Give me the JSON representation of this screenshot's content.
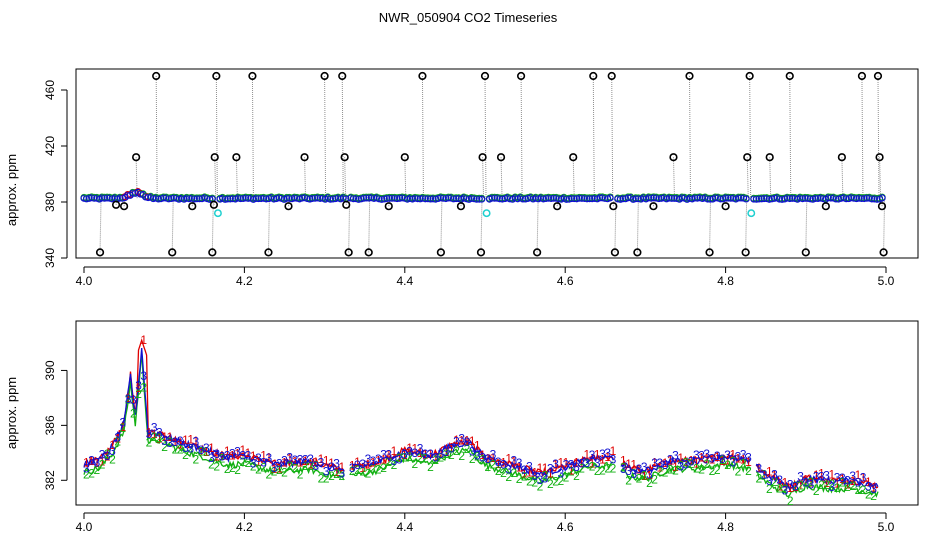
{
  "title": "NWR_050904  CO2 Timeseries",
  "colors": {
    "black": "#000000",
    "red": "#e00000",
    "blue": "#1010d0",
    "green": "#10b010",
    "cyan": "#20d0d0",
    "grey": "#909090"
  },
  "chart_data": [
    {
      "type": "scatter",
      "ylabel": "approx. ppm",
      "xlim": [
        4.0,
        5.0
      ],
      "ylim": [
        340,
        475
      ],
      "x_ticks": [
        "4.0",
        "4.2",
        "4.4",
        "4.6",
        "4.8",
        "5.0"
      ],
      "y_ticks": [
        "340",
        "380",
        "420",
        "460"
      ],
      "baseline_ppm": 382.5,
      "series": [
        {
          "marker": "circle",
          "color": "black",
          "points": [
            [
              4.02,
              344
            ],
            [
              4.04,
              378
            ],
            [
              4.05,
              377
            ],
            [
              4.065,
              412
            ],
            [
              4.09,
              470
            ],
            [
              4.11,
              344
            ],
            [
              4.135,
              377
            ],
            [
              4.16,
              344
            ],
            [
              4.162,
              378
            ],
            [
              4.163,
              412
            ],
            [
              4.165,
              470
            ],
            [
              4.19,
              412
            ],
            [
              4.21,
              470
            ],
            [
              4.23,
              344
            ],
            [
              4.255,
              377
            ],
            [
              4.275,
              412
            ],
            [
              4.3,
              470
            ],
            [
              4.322,
              470
            ],
            [
              4.325,
              412
            ],
            [
              4.327,
              378
            ],
            [
              4.33,
              344
            ],
            [
              4.355,
              344
            ],
            [
              4.38,
              377
            ],
            [
              4.4,
              412
            ],
            [
              4.422,
              470
            ],
            [
              4.445,
              344
            ],
            [
              4.47,
              377
            ],
            [
              4.495,
              344
            ],
            [
              4.497,
              412
            ],
            [
              4.5,
              470
            ],
            [
              4.52,
              412
            ],
            [
              4.545,
              470
            ],
            [
              4.565,
              344
            ],
            [
              4.59,
              377
            ],
            [
              4.61,
              412
            ],
            [
              4.635,
              470
            ],
            [
              4.658,
              470
            ],
            [
              4.66,
              377
            ],
            [
              4.662,
              344
            ],
            [
              4.69,
              344
            ],
            [
              4.71,
              377
            ],
            [
              4.735,
              412
            ],
            [
              4.755,
              470
            ],
            [
              4.78,
              344
            ],
            [
              4.8,
              377
            ],
            [
              4.825,
              344
            ],
            [
              4.827,
              412
            ],
            [
              4.83,
              470
            ],
            [
              4.855,
              412
            ],
            [
              4.88,
              470
            ],
            [
              4.9,
              344
            ],
            [
              4.925,
              377
            ],
            [
              4.945,
              412
            ],
            [
              4.97,
              470
            ],
            [
              4.99,
              470
            ],
            [
              4.992,
              412
            ],
            [
              4.995,
              377
            ],
            [
              4.997,
              344
            ]
          ]
        },
        {
          "marker": "circle",
          "color": "cyan",
          "points": [
            [
              4.167,
              372
            ],
            [
              4.502,
              372
            ],
            [
              4.832,
              372
            ]
          ]
        }
      ]
    },
    {
      "type": "line",
      "ylabel": "approx. ppm",
      "xlim": [
        4.0,
        5.0
      ],
      "ylim": [
        380.2,
        393.6
      ],
      "x_ticks": [
        "4.0",
        "4.2",
        "4.4",
        "4.6",
        "4.8",
        "5.0"
      ],
      "y_ticks": [
        "382",
        "386",
        "390"
      ],
      "series": [
        {
          "name": "1",
          "color": "red",
          "peak_value": 392.2
        },
        {
          "name": "2",
          "color": "green"
        },
        {
          "name": "3",
          "color": "blue"
        }
      ]
    }
  ]
}
